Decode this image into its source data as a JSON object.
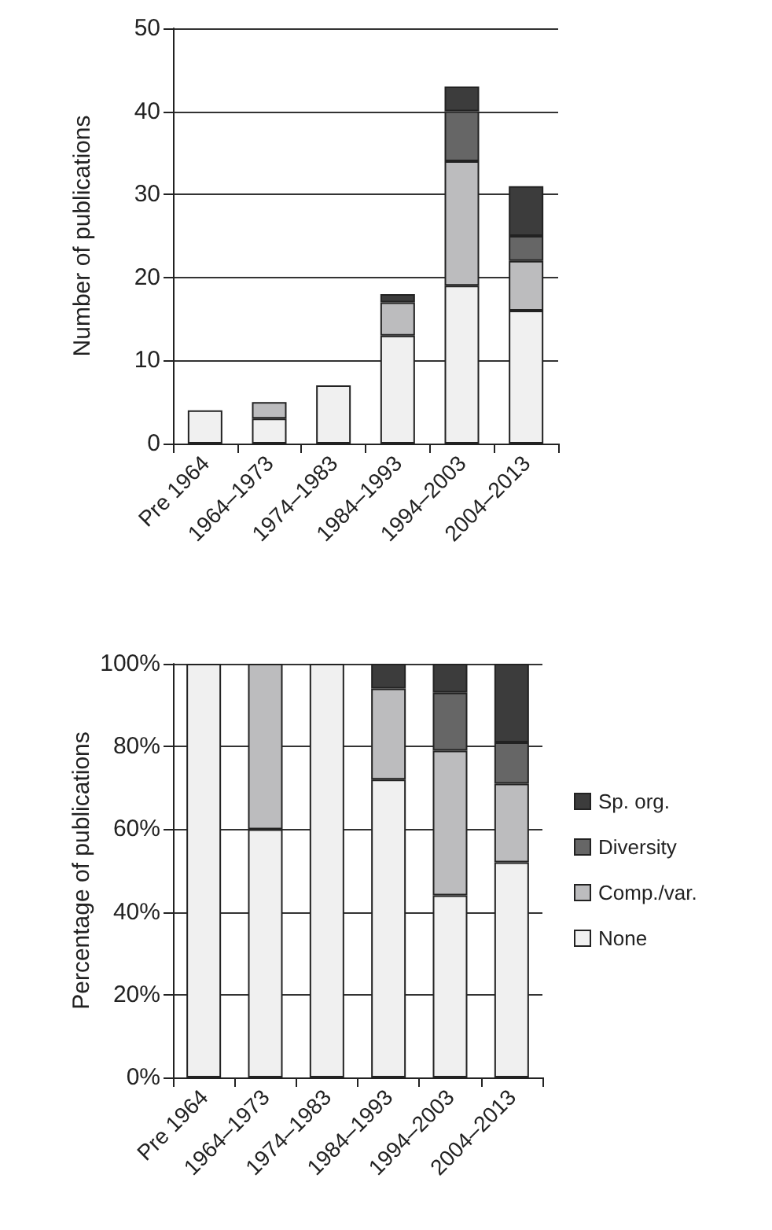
{
  "chart_data": [
    {
      "type": "bar",
      "stacked": true,
      "ylabel": "Number of publications",
      "categories": [
        "Pre 1964",
        "1964–1973",
        "1974–1983",
        "1984–1993",
        "1994–2003",
        "2004–2013"
      ],
      "series": [
        {
          "color": "#f0f0f0",
          "values": [
            4,
            3,
            7,
            13,
            19,
            16
          ]
        },
        {
          "color": "#bcbcbe",
          "values": [
            0,
            2,
            0,
            4,
            15,
            6
          ]
        },
        {
          "color": "#666666",
          "values": [
            0,
            0,
            0,
            0,
            6,
            3
          ]
        },
        {
          "color": "#3c3c3c",
          "values": [
            0,
            0,
            0,
            1,
            3,
            6
          ]
        }
      ],
      "ylim": [
        0,
        50
      ],
      "yticks": [
        0,
        10,
        20,
        30,
        40,
        50
      ],
      "grid": "y",
      "legend": false
    },
    {
      "type": "bar",
      "stacked": true,
      "ylabel": "Percentage of publications",
      "categories": [
        "Pre 1964",
        "1964–1973",
        "1974–1983",
        "1984–1993",
        "1994–2003",
        "2004–2013"
      ],
      "series": [
        {
          "name": "None",
          "color": "#f0f0f0",
          "values": [
            100,
            60,
            100,
            72,
            44,
            52
          ]
        },
        {
          "name": "Comp./var.",
          "color": "#bcbcbe",
          "values": [
            0,
            40,
            0,
            22,
            35,
            19
          ]
        },
        {
          "name": "Diversity",
          "color": "#666666",
          "values": [
            0,
            0,
            0,
            0,
            14,
            10
          ]
        },
        {
          "name": "Sp. org.",
          "color": "#3c3c3c",
          "values": [
            0,
            0,
            0,
            6,
            7,
            19
          ]
        }
      ],
      "ylim": [
        0,
        100
      ],
      "yticks": [
        {
          "value": 0,
          "label": "0%"
        },
        {
          "value": 20,
          "label": "20%"
        },
        {
          "value": 40,
          "label": "40%"
        },
        {
          "value": 60,
          "label": "60%"
        },
        {
          "value": 80,
          "label": "80%"
        },
        {
          "value": 100,
          "label": "100%"
        }
      ],
      "grid": "y",
      "legend": "right"
    }
  ]
}
